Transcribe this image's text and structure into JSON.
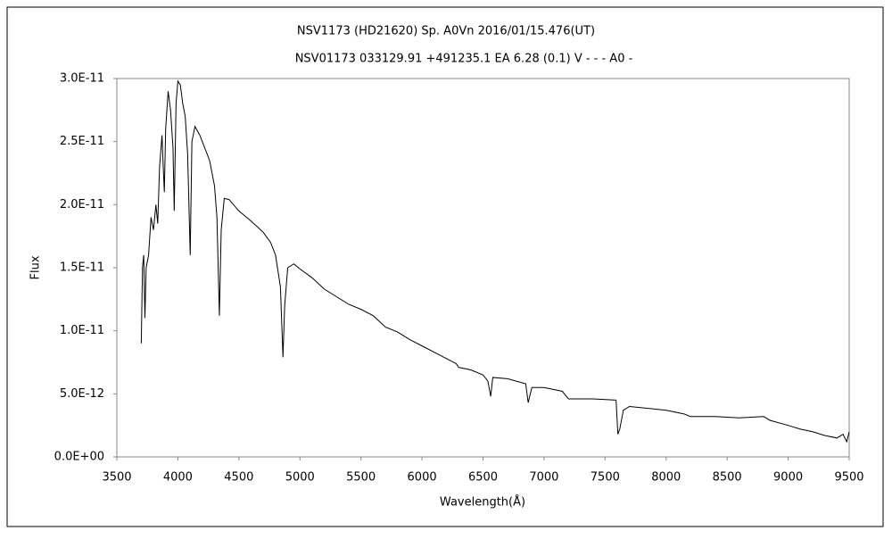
{
  "chart_data": {
    "type": "line",
    "title": "NSV1173 (HD21620)    Sp. A0Vn    2016/01/15.476(UT)",
    "subtitle": "NSV01173 033129.91 +491235.1 EA 6.28 (0.1) V - - - A0 -",
    "xlabel": "Wavelength(Å)",
    "ylabel": "Flux",
    "xlim": [
      3500,
      9500
    ],
    "xticks": [
      3500,
      4000,
      4500,
      5000,
      5500,
      6000,
      6500,
      7000,
      7500,
      8000,
      8500,
      9000,
      9500
    ],
    "ylim": [
      0,
      3e-11
    ],
    "yticks": [
      {
        "value": 0,
        "label": "0.0E+00"
      },
      {
        "value": 5e-12,
        "label": "5.0E-12"
      },
      {
        "value": 1e-11,
        "label": "1.0E-11"
      },
      {
        "value": 1.5e-11,
        "label": "1.5E-11"
      },
      {
        "value": 2e-11,
        "label": "2.0E-11"
      },
      {
        "value": 2.5e-11,
        "label": "2.5E-11"
      },
      {
        "value": 3e-11,
        "label": "3.0E-11"
      }
    ],
    "grid": false,
    "x": [
      3700,
      3710,
      3720,
      3730,
      3740,
      3760,
      3780,
      3800,
      3820,
      3835,
      3850,
      3870,
      3880,
      3889,
      3900,
      3920,
      3940,
      3960,
      3970,
      3985,
      4000,
      4020,
      4040,
      4060,
      4080,
      4101,
      4115,
      4140,
      4180,
      4220,
      4260,
      4300,
      4320,
      4340,
      4355,
      4380,
      4420,
      4500,
      4600,
      4700,
      4760,
      4800,
      4840,
      4861,
      4875,
      4900,
      4950,
      5000,
      5100,
      5200,
      5300,
      5400,
      5500,
      5600,
      5700,
      5800,
      5900,
      6000,
      6100,
      6200,
      6280,
      6300,
      6400,
      6500,
      6540,
      6563,
      6580,
      6700,
      6850,
      6870,
      6900,
      7000,
      7150,
      7200,
      7400,
      7590,
      7605,
      7620,
      7650,
      7700,
      7900,
      8000,
      8150,
      8200,
      8400,
      8600,
      8800,
      8850,
      9000,
      9100,
      9200,
      9300,
      9400,
      9450,
      9480,
      9500
    ],
    "series": [
      {
        "name": "Flux",
        "color": "#000000",
        "values": [
          9e-12,
          1.5e-11,
          1.6e-11,
          1.1e-11,
          1.5e-11,
          1.6e-11,
          1.9e-11,
          1.8e-11,
          2e-11,
          1.85e-11,
          2.3e-11,
          2.55e-11,
          2.3e-11,
          2.1e-11,
          2.6e-11,
          2.9e-11,
          2.75e-11,
          2.45e-11,
          1.95e-11,
          2.8e-11,
          2.98e-11,
          2.95e-11,
          2.8e-11,
          2.7e-11,
          2.4e-11,
          1.6e-11,
          2.5e-11,
          2.62e-11,
          2.55e-11,
          2.45e-11,
          2.35e-11,
          2.15e-11,
          1.9e-11,
          1.12e-11,
          1.8e-11,
          2.05e-11,
          2.04e-11,
          1.95e-11,
          1.87e-11,
          1.78e-11,
          1.7e-11,
          1.6e-11,
          1.35e-11,
          7.9e-12,
          1.2e-11,
          1.5e-11,
          1.53e-11,
          1.49e-11,
          1.42e-11,
          1.33e-11,
          1.27e-11,
          1.21e-11,
          1.17e-11,
          1.12e-11,
          1.03e-11,
          9.9e-12,
          9.3e-12,
          8.8e-12,
          8.3e-12,
          7.8e-12,
          7.4e-12,
          7.1e-12,
          6.9e-12,
          6.5e-12,
          6e-12,
          4.8e-12,
          6.3e-12,
          6.2e-12,
          5.8e-12,
          4.3e-12,
          5.5e-12,
          5.5e-12,
          5.2e-12,
          4.6e-12,
          4.6e-12,
          4.5e-12,
          1.8e-12,
          2.2e-12,
          3.7e-12,
          4e-12,
          3.8e-12,
          3.7e-12,
          3.4e-12,
          3.2e-12,
          3.2e-12,
          3.1e-12,
          3.2e-12,
          2.9e-12,
          2.5e-12,
          2.2e-12,
          2e-12,
          1.7e-12,
          1.5e-12,
          1.8e-12,
          1.2e-12,
          2e-12
        ]
      }
    ]
  }
}
